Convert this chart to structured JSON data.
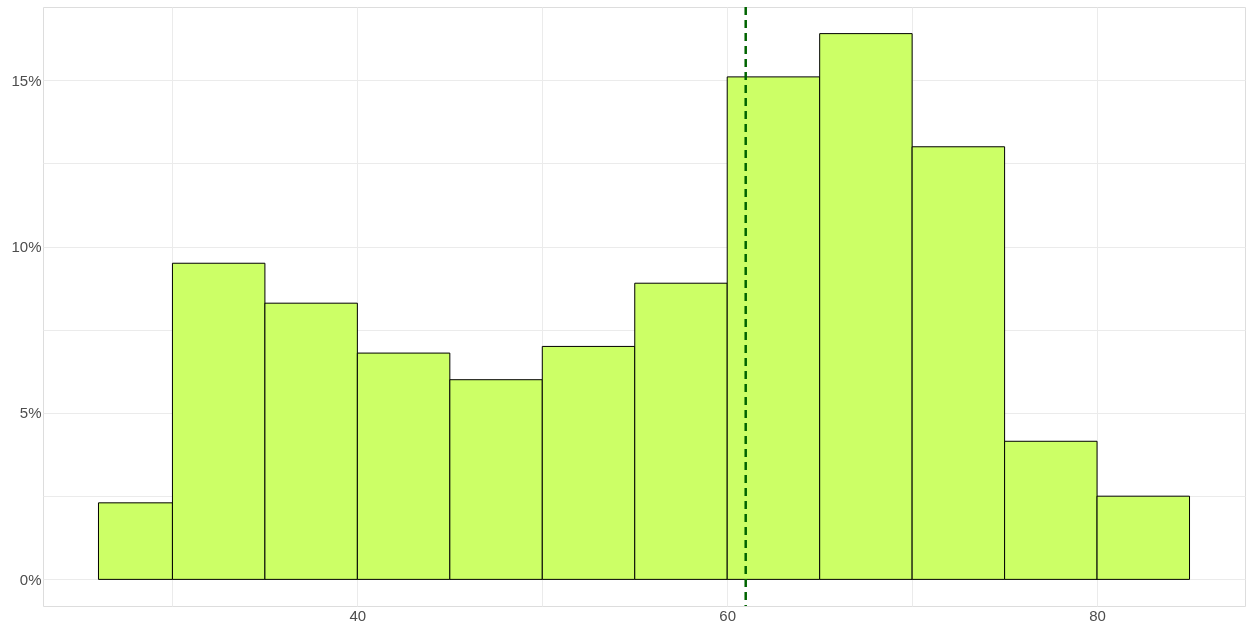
{
  "chart_data": {
    "type": "histogram",
    "bins": [
      26,
      30,
      35,
      40,
      45,
      50,
      55,
      60,
      65,
      70,
      75,
      80,
      85
    ],
    "values": [
      2.3,
      9.5,
      8.3,
      6.8,
      6.0,
      7.0,
      8.9,
      15.1,
      16.4,
      13.0,
      4.15,
      2.5
    ],
    "color": "#ccff66",
    "xlim": [
      23,
      88
    ],
    "ylim": [
      -0.8,
      17.2
    ],
    "xticks": [
      {
        "value": 30,
        "label": null
      },
      40,
      {
        "value": 50,
        "label": null
      },
      60,
      {
        "value": 70,
        "label": null
      },
      80
    ],
    "yticks": [
      {
        "value": 0,
        "label": "0%"
      },
      {
        "value": 2.5,
        "label": null
      },
      {
        "value": 5,
        "label": "5%"
      },
      {
        "value": 7.5,
        "label": null
      },
      {
        "value": 10,
        "label": "10%"
      },
      {
        "value": 12.5,
        "label": null
      },
      {
        "value": 15,
        "label": "15%"
      }
    ],
    "grid": true,
    "ref_lines": [
      {
        "axis": "x",
        "value": 61,
        "color": "#006400",
        "line_style": "dashed"
      }
    ]
  }
}
